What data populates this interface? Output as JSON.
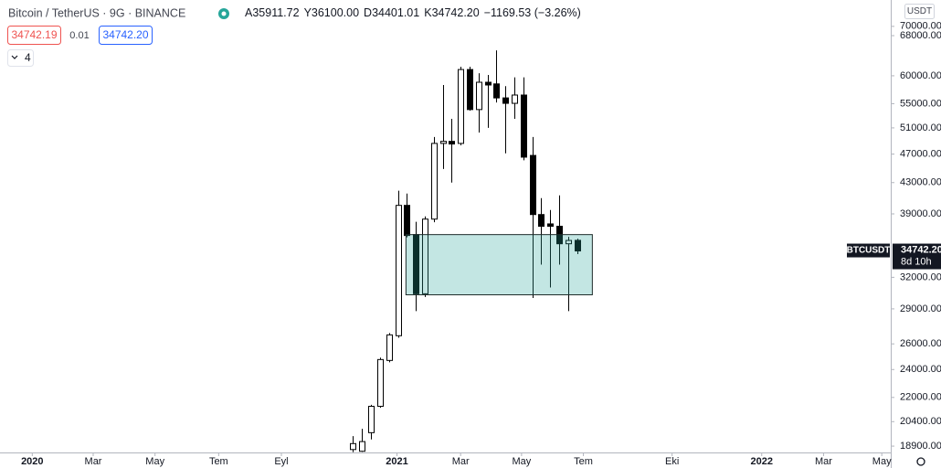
{
  "chart_data": {
    "type": "candlestick",
    "header": {
      "symbol": "Bitcoin / TetherUS · 9G · BINANCE",
      "ohlc": [
        {
          "key": "A",
          "value": "35911.72"
        },
        {
          "key": "Y",
          "value": "36100.00"
        },
        {
          "key": "D",
          "value": "34401.01"
        },
        {
          "key": "K",
          "value": "34742.20"
        }
      ],
      "change": "−1169.53 (−3.26%)",
      "bid": "34742.19",
      "spread": "0.01",
      "ask": "34742.20",
      "indicators": "4"
    },
    "currency": "USDT",
    "last_price": {
      "symbol": "BTCUSDT",
      "label": "34742.20",
      "countdown": "8d 10h"
    },
    "categories": [
      null,
      null,
      null,
      null,
      null,
      null,
      null,
      null,
      null,
      null,
      null,
      null,
      null,
      null,
      null,
      null,
      null,
      null,
      null,
      null,
      null,
      null,
      null,
      null,
      null,
      null
    ],
    "open": [
      18700,
      18600,
      19710,
      21400,
      24690,
      26670,
      40050,
      36560,
      30400,
      38370,
      48590,
      48900,
      48590,
      61180,
      54000,
      58800,
      58500,
      56000,
      55060,
      56500,
      46800,
      38920,
      37800,
      37520,
      35530,
      35911.72
    ],
    "high": [
      19500,
      19950,
      21500,
      24910,
      26890,
      41920,
      41550,
      38050,
      38700,
      49570,
      58290,
      52470,
      61710,
      61710,
      60480,
      60150,
      64940,
      58100,
      59700,
      59700,
      49570,
      40970,
      39480,
      41320,
      36300,
      36100
    ],
    "low": [
      18550,
      18560,
      19300,
      21300,
      24550,
      26500,
      36250,
      28800,
      30100,
      38000,
      44870,
      43000,
      48300,
      53800,
      50270,
      51010,
      55200,
      47100,
      52470,
      46100,
      30000,
      33290,
      31000,
      33290,
      28800,
      34401.01
    ],
    "close": [
      19050,
      19170,
      21400,
      24760,
      26740,
      40050,
      36460,
      30400,
      38370,
      48590,
      48900,
      48500,
      61180,
      54000,
      58800,
      58300,
      56000,
      55060,
      56500,
      46550,
      38920,
      37520,
      37520,
      35530,
      35900,
      34742.2
    ],
    "up_color": "#ffffff",
    "down_color": "#000000",
    "zone": {
      "top": 36560,
      "bottom": 30300,
      "x": [
        5.9,
        26.7
      ],
      "color": "#26a69a"
    },
    "log_scale": true,
    "grid": true,
    "ylim": [
      18530,
      76000
    ],
    "yticks": [
      {
        "value": 70000,
        "label": "70000.00"
      },
      {
        "value": 68000,
        "label": "68000.00"
      },
      {
        "value": 60000,
        "label": "60000.00"
      },
      {
        "value": 55000,
        "label": "55000.00"
      },
      {
        "value": 51000,
        "label": "51000.00"
      },
      {
        "value": 47000,
        "label": "47000.00"
      },
      {
        "value": 43000,
        "label": "43000.00"
      },
      {
        "value": 39000,
        "label": "39000.00"
      },
      {
        "value": 32000,
        "label": "32000.00"
      },
      {
        "value": 29000,
        "label": "29000.00"
      },
      {
        "value": 26000,
        "label": "26000.00"
      },
      {
        "value": 24000,
        "label": "24000.00"
      },
      {
        "value": 22000,
        "label": "22000.00"
      },
      {
        "value": 20400,
        "label": "20400.00"
      },
      {
        "value": 18900,
        "label": "18900.00"
      }
    ],
    "xlim": [
      -39.4,
      60.0
    ],
    "xticks": [
      {
        "value": -35.8,
        "label": "2020"
      },
      {
        "value": -29.0,
        "label": "Mar"
      },
      {
        "value": -22.1,
        "label": "May"
      },
      {
        "value": -15.0,
        "label": "Tem"
      },
      {
        "value": -8.0,
        "label": "Eyl"
      },
      {
        "value": 4.9,
        "label": "2021"
      },
      {
        "value": 12.0,
        "label": "Mar"
      },
      {
        "value": 18.8,
        "label": "May"
      },
      {
        "value": 25.7,
        "label": "Tem"
      },
      {
        "value": 35.6,
        "label": "Eki"
      },
      {
        "value": 45.6,
        "label": "2022"
      },
      {
        "value": 52.5,
        "label": "Mar"
      },
      {
        "value": 59.0,
        "label": "May"
      }
    ]
  }
}
